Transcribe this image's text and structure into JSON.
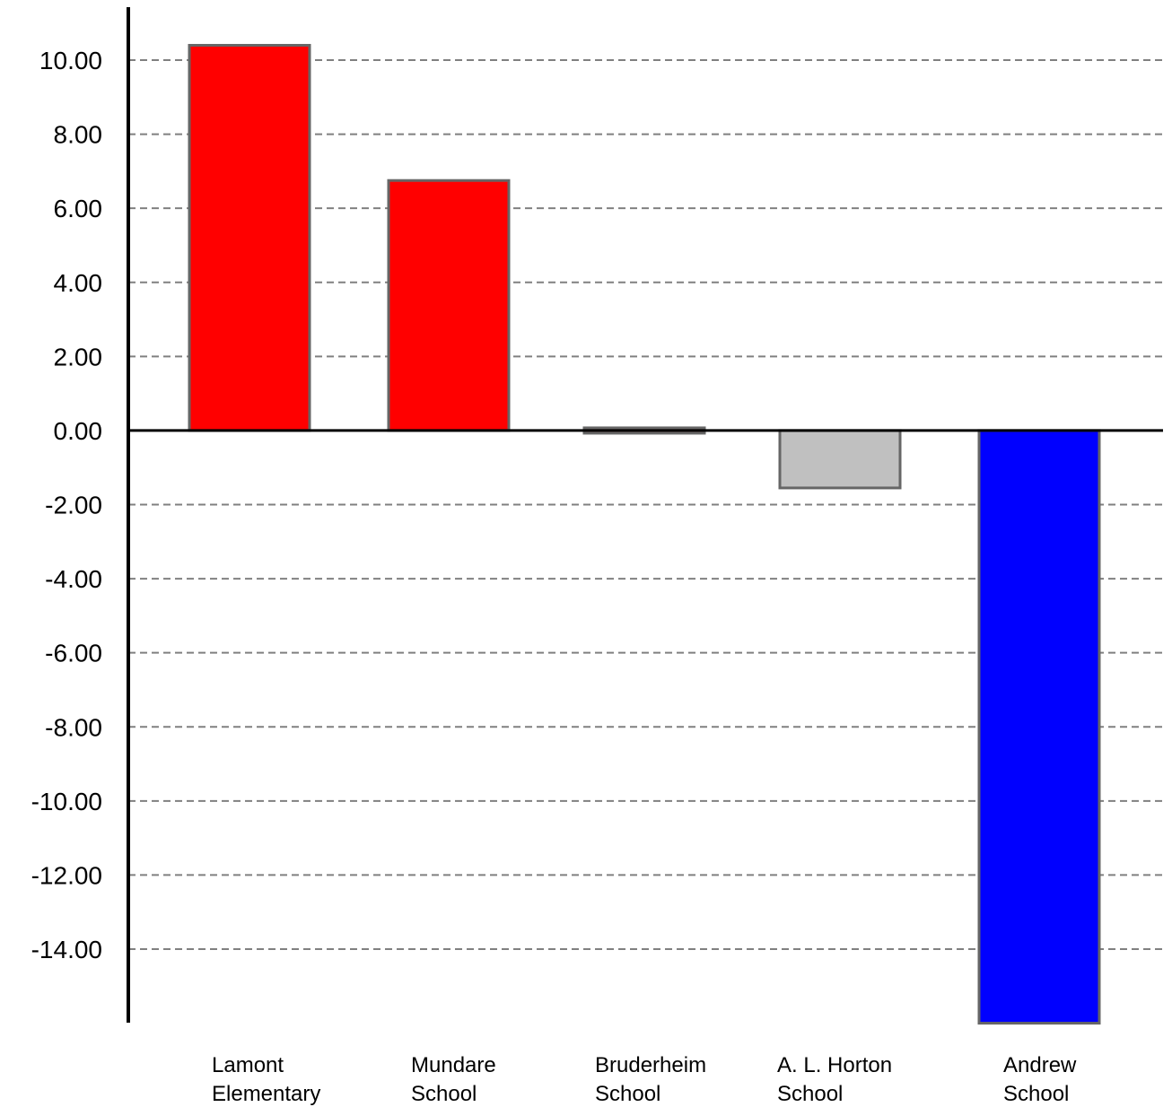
{
  "chart_data": {
    "type": "bar",
    "categories": [
      [
        "Lamont",
        "Elementary"
      ],
      [
        "Mundare",
        "School"
      ],
      [
        "Bruderheim",
        "School"
      ],
      [
        "A. L. Horton",
        "School"
      ],
      [
        "Andrew",
        "School"
      ]
    ],
    "values": [
      10.4,
      6.75,
      -0.1,
      -1.55,
      -16.0
    ],
    "bar_colors": [
      "#ff0000",
      "#ff0000",
      "#b26b6b",
      "#c0c0c0",
      "#0000ff"
    ],
    "y_ticks": [
      "10.00",
      "8.00",
      "6.00",
      "4.00",
      "2.00",
      "0.00",
      "-2.00",
      "-4.00",
      "-6.00",
      "-8.00",
      "-10.00",
      "-12.00",
      "-14.00"
    ],
    "y_tick_values": [
      10,
      8,
      6,
      4,
      2,
      0,
      -2,
      -4,
      -6,
      -8,
      -10,
      -12,
      -14
    ],
    "ylim": [
      -16,
      11.4
    ],
    "grid": true,
    "title": "",
    "xlabel": "",
    "ylabel": ""
  }
}
